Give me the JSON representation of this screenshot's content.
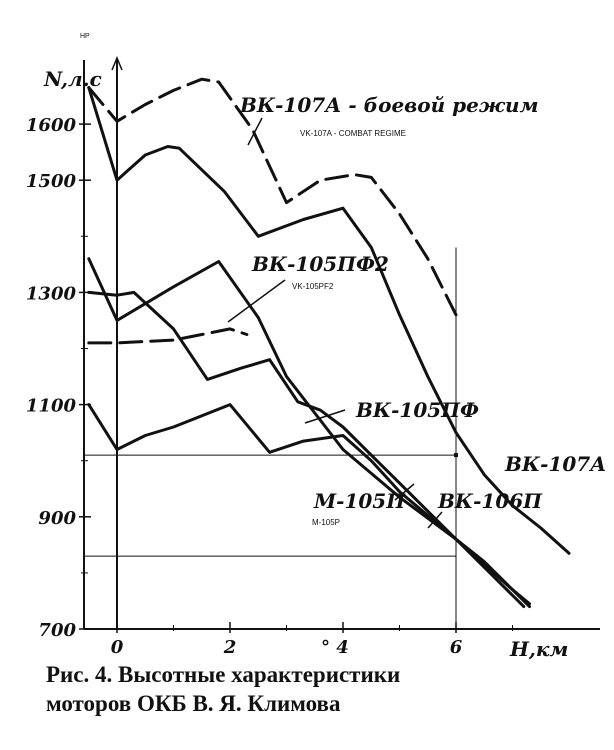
{
  "chart_data": {
    "type": "line",
    "y_unit_hp": "HP",
    "ylabel": "N,л.с",
    "xlabel": "H,км",
    "xlim": [
      -0.2,
      8.2
    ],
    "ylim": [
      700,
      1720
    ],
    "y_ticks": [
      700,
      900,
      1100,
      1300,
      1500,
      1600
    ],
    "x_ticks": [
      0,
      2,
      4,
      6
    ],
    "x_tick_labels": [
      "0",
      "2",
      "°  4",
      "6"
    ],
    "grid": false,
    "series": [
      {
        "name": "ВК-107А - боевой режим",
        "subname": "VK-107A - COMBAT REGIME",
        "style": "dashed",
        "points": [
          [
            -0.5,
            1665
          ],
          [
            0,
            1605
          ],
          [
            0.5,
            1635
          ],
          [
            1,
            1660
          ],
          [
            1.5,
            1680
          ],
          [
            1.8,
            1675
          ],
          [
            2.4,
            1590
          ],
          [
            3,
            1460
          ],
          [
            3.6,
            1500
          ],
          [
            4.2,
            1510
          ],
          [
            4.5,
            1505
          ],
          [
            5,
            1440
          ],
          [
            5.5,
            1360
          ],
          [
            6,
            1260
          ]
        ]
      },
      {
        "name": "ВК-107А",
        "style": "solid",
        "points": [
          [
            -0.5,
            1665
          ],
          [
            0,
            1500
          ],
          [
            0.5,
            1545
          ],
          [
            0.9,
            1560
          ],
          [
            1.1,
            1557
          ],
          [
            1.9,
            1480
          ],
          [
            2.5,
            1400
          ],
          [
            3.3,
            1430
          ],
          [
            4,
            1450
          ],
          [
            4.5,
            1380
          ],
          [
            5,
            1260
          ],
          [
            5.5,
            1150
          ],
          [
            6,
            1050
          ],
          [
            6.5,
            975
          ],
          [
            7,
            920
          ],
          [
            7.5,
            880
          ],
          [
            8,
            835
          ]
        ]
      },
      {
        "name": "ВК-105ПФ2",
        "subname": "VK-105PF2",
        "style": "solid",
        "points": [
          [
            -0.5,
            1360
          ],
          [
            0,
            1250
          ],
          [
            1,
            1310
          ],
          [
            1.8,
            1355
          ],
          [
            2.5,
            1255
          ],
          [
            3,
            1150
          ],
          [
            4,
            1020
          ],
          [
            5,
            935
          ],
          [
            6,
            860
          ],
          [
            6.5,
            820
          ],
          [
            7,
            770
          ],
          [
            7.3,
            745
          ]
        ]
      },
      {
        "name": "ВК-106П",
        "style": "dashed",
        "points": [
          [
            -0.5,
            1210
          ],
          [
            0,
            1210
          ],
          [
            1,
            1215
          ],
          [
            1.5,
            1225
          ],
          [
            2,
            1235
          ],
          [
            2.3,
            1225
          ]
        ]
      },
      {
        "name": "ВК-105ПФ",
        "style": "solid",
        "points": [
          [
            -0.5,
            1300
          ],
          [
            0,
            1295
          ],
          [
            0.3,
            1300
          ],
          [
            1,
            1235
          ],
          [
            1.6,
            1145
          ],
          [
            2.2,
            1165
          ],
          [
            2.7,
            1180
          ],
          [
            3.2,
            1105
          ],
          [
            3.6,
            1090
          ],
          [
            4,
            1060
          ],
          [
            5,
            960
          ],
          [
            6,
            860
          ],
          [
            6.5,
            810
          ],
          [
            7,
            760
          ],
          [
            7.2,
            740
          ]
        ]
      },
      {
        "name": "М-105П",
        "subname": "M-105P",
        "style": "solid",
        "points": [
          [
            -0.5,
            1100
          ],
          [
            0,
            1020
          ],
          [
            0.5,
            1045
          ],
          [
            1,
            1060
          ],
          [
            2,
            1100
          ],
          [
            2.7,
            1015
          ],
          [
            3.3,
            1035
          ],
          [
            4,
            1045
          ],
          [
            4.5,
            1000
          ],
          [
            5,
            945
          ],
          [
            6,
            860
          ],
          [
            6.5,
            815
          ],
          [
            7,
            770
          ],
          [
            7.3,
            740
          ]
        ]
      }
    ],
    "reference_lines": {
      "horizontal_y": [
        1010,
        830
      ],
      "vertical_x": [
        6
      ],
      "vertical_ymax": 1380
    }
  },
  "caption_line1": "Рис. 4. Высотные  характеристики",
  "caption_line2": "моторов   ОКБ   В. Я. Климова"
}
